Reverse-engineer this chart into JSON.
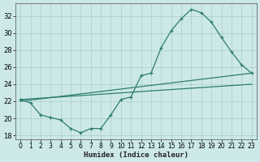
{
  "xlabel": "Humidex (Indice chaleur)",
  "xlim": [
    -0.5,
    23.5
  ],
  "ylim": [
    17.5,
    33.5
  ],
  "yticks": [
    18,
    20,
    22,
    24,
    26,
    28,
    30,
    32
  ],
  "xticks": [
    0,
    1,
    2,
    3,
    4,
    5,
    6,
    7,
    8,
    9,
    10,
    11,
    12,
    13,
    14,
    15,
    16,
    17,
    18,
    19,
    20,
    21,
    22,
    23
  ],
  "bg_color": "#cce8e8",
  "line_color": "#2d7d6e",
  "grid_color": "#aacccc",
  "line1_x": [
    0,
    1,
    2,
    3,
    4,
    5,
    6,
    7,
    8,
    9,
    10,
    11,
    12,
    13,
    14,
    15,
    16,
    17,
    18,
    19,
    20,
    21,
    22,
    23
  ],
  "line1_y": [
    22.2,
    21.8,
    20.4,
    20.1,
    19.8,
    18.8,
    18.3,
    18.8,
    18.8,
    20.4,
    22.2,
    22.5,
    25.0,
    25.3,
    28.3,
    30.3,
    31.7,
    32.8,
    32.4,
    31.3,
    29.5,
    27.8,
    26.3,
    25.3
  ],
  "line2_x": [
    0,
    23
  ],
  "line2_y": [
    22.0,
    25.3
  ],
  "line3_x": [
    0,
    23
  ],
  "line3_y": [
    22.2,
    24.0
  ]
}
